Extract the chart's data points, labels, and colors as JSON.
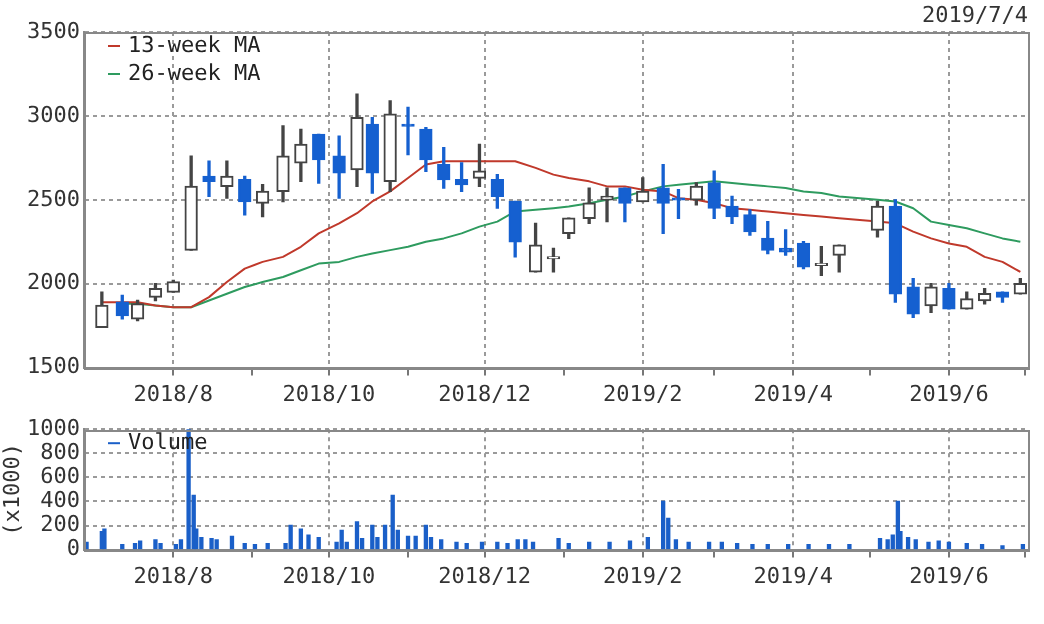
{
  "chart_data": [
    {
      "type": "candlestick",
      "x": [
        "2018-07-04",
        "2018-07-12",
        "2018-07-18",
        "2018-07-25",
        "2018-08-01",
        "2018-08-08",
        "2018-08-15",
        "2018-08-22",
        "2018-08-29",
        "2018-09-05",
        "2018-09-13",
        "2018-09-20",
        "2018-09-27",
        "2018-10-05",
        "2018-10-12",
        "2018-10-18",
        "2018-10-25",
        "2018-11-01",
        "2018-11-08",
        "2018-11-15",
        "2018-11-22",
        "2018-11-29",
        "2018-12-06",
        "2018-12-13",
        "2018-12-21",
        "2018-12-28",
        "2019-01-03",
        "2019-01-11",
        "2019-01-18",
        "2019-01-25",
        "2019-02-01",
        "2019-02-09",
        "2019-02-15",
        "2019-02-22",
        "2019-03-01",
        "2019-03-08",
        "2019-03-15",
        "2019-03-22",
        "2019-03-29",
        "2019-04-05",
        "2019-04-12",
        "2019-04-19",
        "2019-05-04",
        "2019-05-11",
        "2019-05-18",
        "2019-05-25",
        "2019-06-01",
        "2019-06-08",
        "2019-06-15",
        "2019-06-22",
        "2019-06-29"
      ],
      "ohlc": [
        [
          1740,
          1950,
          1740,
          1870
        ],
        [
          1890,
          1930,
          1790,
          1810
        ],
        [
          1790,
          1900,
          1780,
          1880
        ],
        [
          1920,
          2000,
          1900,
          1970
        ],
        [
          1950,
          2020,
          1950,
          2010
        ],
        [
          2200,
          2760,
          2200,
          2580
        ],
        [
          2640,
          2730,
          2520,
          2610
        ],
        [
          2580,
          2730,
          2510,
          2640
        ],
        [
          2620,
          2640,
          2410,
          2490
        ],
        [
          2480,
          2590,
          2400,
          2550
        ],
        [
          2550,
          2940,
          2490,
          2760
        ],
        [
          2720,
          2920,
          2610,
          2830
        ],
        [
          2890,
          2890,
          2600,
          2740
        ],
        [
          2760,
          2880,
          2510,
          2660
        ],
        [
          2680,
          3130,
          2580,
          2990
        ],
        [
          2950,
          2990,
          2540,
          2660
        ],
        [
          2610,
          3090,
          2550,
          3010
        ],
        [
          2950,
          3050,
          2770,
          2940
        ],
        [
          2920,
          2930,
          2670,
          2740
        ],
        [
          2710,
          2810,
          2570,
          2620
        ],
        [
          2620,
          2720,
          2550,
          2590
        ],
        [
          2630,
          2830,
          2580,
          2670
        ],
        [
          2620,
          2650,
          2450,
          2520
        ],
        [
          2490,
          2490,
          2160,
          2250
        ],
        [
          2070,
          2360,
          2070,
          2230
        ],
        [
          2150,
          2210,
          2070,
          2160
        ],
        [
          2300,
          2390,
          2270,
          2390
        ],
        [
          2390,
          2570,
          2360,
          2480
        ],
        [
          2500,
          2570,
          2370,
          2520
        ],
        [
          2570,
          2570,
          2370,
          2480
        ],
        [
          2490,
          2630,
          2490,
          2550
        ],
        [
          2570,
          2710,
          2300,
          2480
        ],
        [
          2510,
          2560,
          2390,
          2500
        ],
        [
          2500,
          2600,
          2470,
          2580
        ],
        [
          2600,
          2670,
          2390,
          2450
        ],
        [
          2460,
          2520,
          2360,
          2400
        ],
        [
          2410,
          2440,
          2290,
          2310
        ],
        [
          2270,
          2370,
          2180,
          2200
        ],
        [
          2210,
          2320,
          2170,
          2190
        ],
        [
          2240,
          2250,
          2090,
          2100
        ],
        [
          2110,
          2220,
          2050,
          2120
        ],
        [
          2170,
          2230,
          2070,
          2230
        ],
        [
          2320,
          2490,
          2280,
          2460
        ],
        [
          2460,
          2500,
          1890,
          1940
        ],
        [
          1980,
          2030,
          1800,
          1820
        ],
        [
          1870,
          2000,
          1830,
          1980
        ],
        [
          1970,
          2000,
          1850,
          1850
        ],
        [
          1850,
          1950,
          1850,
          1910
        ],
        [
          1900,
          1970,
          1880,
          1940
        ],
        [
          1950,
          1950,
          1890,
          1920
        ],
        [
          1940,
          2030,
          1940,
          2000
        ]
      ],
      "series": [
        {
          "name": "13-week MA",
          "type": "line",
          "color": "#c0392b",
          "x": [
            "2018-07-04",
            "2018-07-12",
            "2018-07-18",
            "2018-07-25",
            "2018-08-01",
            "2018-08-08",
            "2018-08-15",
            "2018-08-22",
            "2018-08-29",
            "2018-09-05",
            "2018-09-13",
            "2018-09-20",
            "2018-09-27",
            "2018-10-05",
            "2018-10-12",
            "2018-10-18",
            "2018-10-25",
            "2018-11-01",
            "2018-11-08",
            "2018-11-15",
            "2018-11-22",
            "2018-11-29",
            "2018-12-06",
            "2018-12-13",
            "2018-12-21",
            "2018-12-28",
            "2019-01-03",
            "2019-01-11",
            "2019-01-18",
            "2019-01-25",
            "2019-02-01",
            "2019-02-09",
            "2019-02-15",
            "2019-02-22",
            "2019-03-01",
            "2019-03-08",
            "2019-03-15",
            "2019-03-22",
            "2019-03-29",
            "2019-04-05",
            "2019-04-12",
            "2019-04-19",
            "2019-05-04",
            "2019-05-11",
            "2019-05-18",
            "2019-05-25",
            "2019-06-01",
            "2019-06-08",
            "2019-06-15",
            "2019-06-22",
            "2019-06-29"
          ],
          "values": [
            1890,
            1890,
            1890,
            1870,
            1860,
            1860,
            1920,
            2010,
            2090,
            2130,
            2160,
            2220,
            2300,
            2360,
            2420,
            2490,
            2550,
            2630,
            2710,
            2730,
            2730,
            2730,
            2730,
            2730,
            2690,
            2650,
            2630,
            2610,
            2580,
            2580,
            2560,
            2550,
            2510,
            2500,
            2480,
            2450,
            2440,
            2430,
            2420,
            2410,
            2400,
            2390,
            2370,
            2360,
            2310,
            2270,
            2240,
            2220,
            2160,
            2130,
            2070
          ]
        },
        {
          "name": "26-week MA",
          "type": "line",
          "color": "#2e9b5f",
          "x": [
            "2018-07-12",
            "2018-07-18",
            "2018-07-25",
            "2018-08-01",
            "2018-08-08",
            "2018-08-15",
            "2018-08-22",
            "2018-08-29",
            "2018-09-05",
            "2018-09-13",
            "2018-09-20",
            "2018-09-27",
            "2018-10-05",
            "2018-10-12",
            "2018-10-18",
            "2018-10-25",
            "2018-11-01",
            "2018-11-08",
            "2018-11-15",
            "2018-11-22",
            "2018-11-29",
            "2018-12-06",
            "2018-12-13",
            "2018-12-21",
            "2018-12-28",
            "2019-01-03",
            "2019-01-11",
            "2019-01-18",
            "2019-01-25",
            "2019-02-01",
            "2019-02-09",
            "2019-02-15",
            "2019-02-22",
            "2019-03-01",
            "2019-03-08",
            "2019-03-15",
            "2019-03-22",
            "2019-03-29",
            "2019-04-05",
            "2019-04-12",
            "2019-04-19",
            "2019-05-04",
            "2019-05-11",
            "2019-05-18",
            "2019-05-25",
            "2019-06-01",
            "2019-06-08",
            "2019-06-15",
            "2019-06-22",
            "2019-06-29"
          ],
          "values": [
            1880,
            1880,
            1870,
            1860,
            1860,
            1900,
            1940,
            1980,
            2010,
            2040,
            2080,
            2120,
            2130,
            2160,
            2180,
            2200,
            2220,
            2250,
            2270,
            2300,
            2340,
            2370,
            2430,
            2440,
            2450,
            2460,
            2480,
            2500,
            2520,
            2550,
            2580,
            2590,
            2600,
            2610,
            2600,
            2590,
            2580,
            2570,
            2550,
            2540,
            2520,
            2500,
            2490,
            2450,
            2370,
            2350,
            2330,
            2300,
            2270,
            2250
          ]
        }
      ],
      "xlim": [
        "2018-06-27",
        "2019-07-02"
      ],
      "xticks": [
        {
          "value": "2018-08-01",
          "label": "2018/8"
        },
        {
          "value": "2018-09-01",
          "label": null
        },
        {
          "value": "2018-10-01",
          "label": "2018/10"
        },
        {
          "value": "2018-11-01",
          "label": null
        },
        {
          "value": "2018-12-01",
          "label": "2018/12"
        },
        {
          "value": "2019-01-01",
          "label": null
        },
        {
          "value": "2019-02-01",
          "label": "2019/2"
        },
        {
          "value": "2019-03-01",
          "label": null
        },
        {
          "value": "2019-04-01",
          "label": "2019/4"
        },
        {
          "value": "2019-05-01",
          "label": null
        },
        {
          "value": "2019-06-01",
          "label": "2019/6"
        },
        {
          "value": "2019-07-01",
          "label": null
        }
      ],
      "ylim": [
        1500,
        3500
      ],
      "yticks": [
        1500,
        2000,
        2500,
        3000,
        3500
      ],
      "grid": true,
      "legend": "top left",
      "annotations": [
        "2019/7/4"
      ]
    },
    {
      "type": "bar",
      "x": [
        "2018-06-28",
        "2018-07-04",
        "2018-07-05",
        "2018-07-12",
        "2018-07-17",
        "2018-07-19",
        "2018-07-25",
        "2018-07-27",
        "2018-08-02",
        "2018-08-04",
        "2018-08-07",
        "2018-08-09",
        "2018-08-10",
        "2018-08-12",
        "2018-08-16",
        "2018-08-18",
        "2018-08-24",
        "2018-08-29",
        "2018-09-02",
        "2018-09-07",
        "2018-09-14",
        "2018-09-16",
        "2018-09-20",
        "2018-09-23",
        "2018-09-27",
        "2018-10-04",
        "2018-10-06",
        "2018-10-08",
        "2018-10-12",
        "2018-10-14",
        "2018-10-18",
        "2018-10-20",
        "2018-10-23",
        "2018-10-26",
        "2018-10-28",
        "2018-11-01",
        "2018-11-04",
        "2018-11-08",
        "2018-11-10",
        "2018-11-14",
        "2018-11-20",
        "2018-11-24",
        "2018-11-30",
        "2018-12-06",
        "2018-12-10",
        "2018-12-14",
        "2018-12-17",
        "2018-12-20",
        "2018-12-30",
        "2019-01-03",
        "2019-01-11",
        "2019-01-19",
        "2019-01-27",
        "2019-02-03",
        "2019-02-09",
        "2019-02-11",
        "2019-02-14",
        "2019-02-19",
        "2019-02-27",
        "2019-03-04",
        "2019-03-10",
        "2019-03-16",
        "2019-03-22",
        "2019-03-30",
        "2019-04-07",
        "2019-04-15",
        "2019-04-23",
        "2019-05-05",
        "2019-05-08",
        "2019-05-10",
        "2019-05-12",
        "2019-05-13",
        "2019-05-16",
        "2019-05-19",
        "2019-05-24",
        "2019-05-28",
        "2019-06-01",
        "2019-06-08",
        "2019-06-14",
        "2019-06-22",
        "2019-06-30"
      ],
      "series": [
        {
          "name": "Volume",
          "color": "#1a5fc8",
          "values": [
            60,
            150,
            170,
            40,
            50,
            70,
            80,
            50,
            40,
            80,
            1000,
            450,
            170,
            100,
            90,
            80,
            110,
            50,
            40,
            50,
            50,
            200,
            170,
            120,
            100,
            60,
            160,
            60,
            230,
            90,
            200,
            100,
            200,
            450,
            160,
            110,
            110,
            200,
            100,
            80,
            60,
            50,
            60,
            60,
            50,
            80,
            80,
            60,
            90,
            50,
            60,
            60,
            70,
            100,
            400,
            260,
            80,
            60,
            60,
            60,
            50,
            40,
            40,
            40,
            40,
            40,
            40,
            90,
            80,
            120,
            400,
            150,
            100,
            80,
            60,
            70,
            60,
            50,
            40,
            30,
            40
          ]
        }
      ],
      "xlim": [
        "2018-06-27",
        "2019-07-02"
      ],
      "xticks": [
        {
          "value": "2018-08-01",
          "label": "2018/8"
        },
        {
          "value": "2018-09-01",
          "label": null
        },
        {
          "value": "2018-10-01",
          "label": "2018/10"
        },
        {
          "value": "2018-11-01",
          "label": null
        },
        {
          "value": "2018-12-01",
          "label": "2018/12"
        },
        {
          "value": "2019-01-01",
          "label": null
        },
        {
          "value": "2019-02-01",
          "label": "2019/2"
        },
        {
          "value": "2019-03-01",
          "label": null
        },
        {
          "value": "2019-04-01",
          "label": "2019/4"
        },
        {
          "value": "2019-05-01",
          "label": null
        },
        {
          "value": "2019-06-01",
          "label": "2019/6"
        },
        {
          "value": "2019-07-01",
          "label": null
        }
      ],
      "ylim": [
        0,
        1000
      ],
      "yticks": [
        0,
        200,
        400,
        600,
        800,
        1000
      ],
      "ylabel": "(x1000)",
      "grid": true,
      "legend": "top left"
    }
  ]
}
